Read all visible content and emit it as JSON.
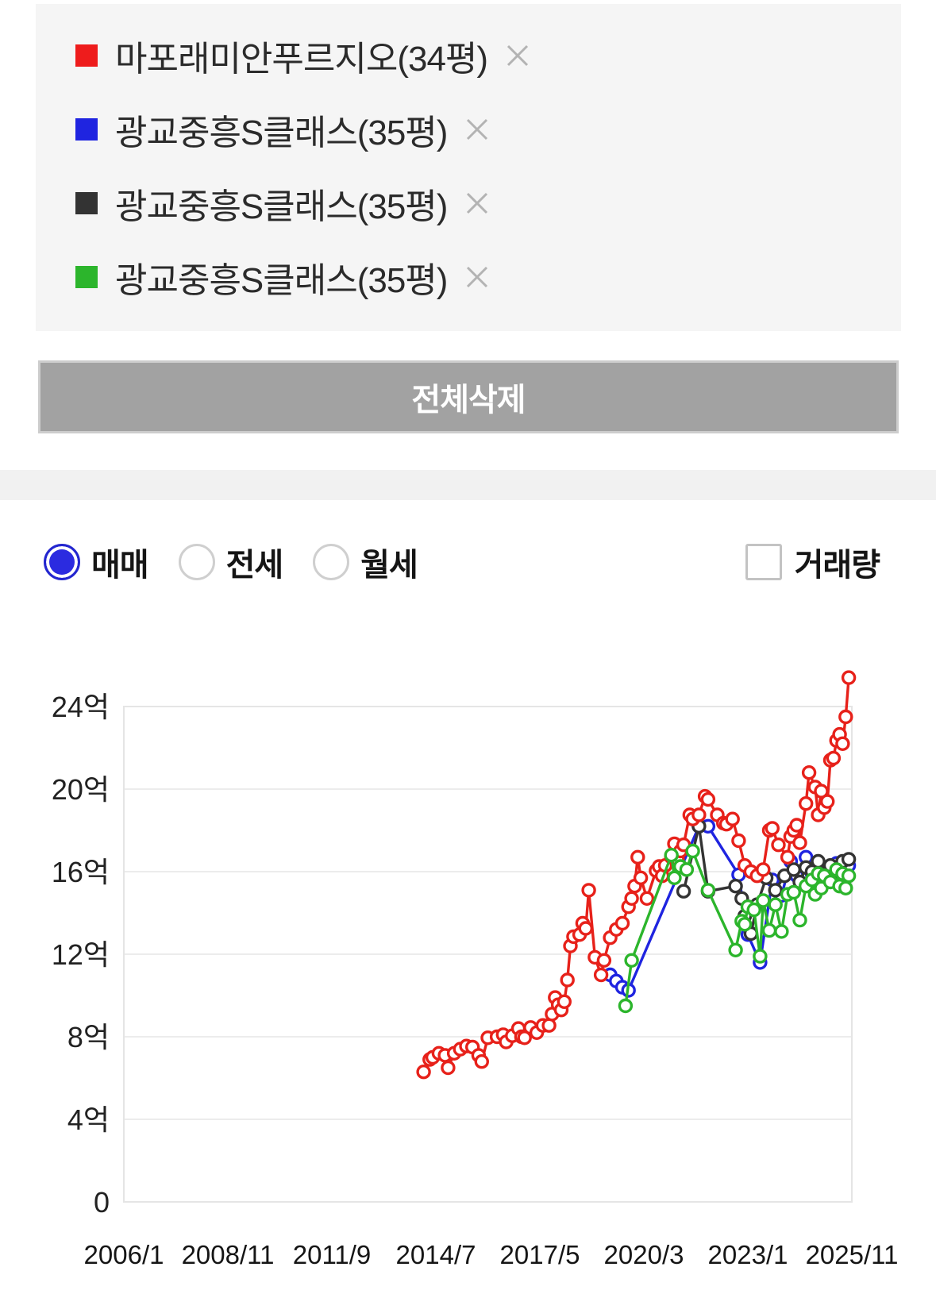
{
  "watchlist": {
    "items": [
      {
        "label": "마포래미안푸르지오(34평)",
        "color": "#ee1c1c"
      },
      {
        "label": "광교중흥S클래스(35평)",
        "color": "#1f24e0"
      },
      {
        "label": "광교중흥S클래스(35평)",
        "color": "#333333"
      },
      {
        "label": "광교중흥S클래스(35평)",
        "color": "#2cb52c"
      }
    ],
    "delete_all_label": "전체삭제"
  },
  "controls": {
    "trade_type": {
      "options": [
        {
          "label": "매매",
          "selected": true
        },
        {
          "label": "전세",
          "selected": false
        },
        {
          "label": "월세",
          "selected": false
        }
      ]
    },
    "volume_checkbox": {
      "label": "거래량",
      "checked": false
    }
  },
  "chart_data": {
    "type": "line",
    "title": "",
    "xlabel": "",
    "ylabel": "",
    "unit": "억",
    "ylim": [
      0,
      24
    ],
    "grid": "horizontal",
    "marker": "open-circle",
    "y_ticks": [
      {
        "value": 0,
        "label": "0"
      },
      {
        "value": 4,
        "label": "4억"
      },
      {
        "value": 8,
        "label": "8억"
      },
      {
        "value": 12,
        "label": "12억"
      },
      {
        "value": 16,
        "label": "16억"
      },
      {
        "value": 20,
        "label": "20억"
      },
      {
        "value": 24,
        "label": "24억"
      }
    ],
    "x_ticks": [
      {
        "month": "2006-01",
        "label": "2006/1"
      },
      {
        "month": "2008-11",
        "label": "2008/11"
      },
      {
        "month": "2011-09",
        "label": "2011/9"
      },
      {
        "month": "2014-07",
        "label": "2014/7"
      },
      {
        "month": "2017-05",
        "label": "2017/5"
      },
      {
        "month": "2020-03",
        "label": "2020/3"
      },
      {
        "month": "2023-01",
        "label": "2023/1"
      },
      {
        "month": "2025-11",
        "label": "2025/11"
      }
    ],
    "x_range": [
      "2006-01",
      "2025-11"
    ],
    "series": [
      {
        "name": "광교중흥S클래스(35평)",
        "color": "#1f24e0",
        "points": [
          [
            "2019-04",
            11.0
          ],
          [
            "2019-06",
            10.7
          ],
          [
            "2019-08",
            10.4
          ],
          [
            "2019-10",
            10.25
          ],
          [
            "2021-09",
            18.2
          ],
          [
            "2021-12",
            18.2
          ],
          [
            "2022-10",
            15.85
          ],
          [
            "2023-01",
            12.95
          ],
          [
            "2023-05",
            11.6
          ],
          [
            "2023-09",
            15.6
          ],
          [
            "2023-12",
            14.85
          ],
          [
            "2024-03",
            16.5
          ],
          [
            "2024-05",
            15.8
          ],
          [
            "2024-08",
            16.7
          ],
          [
            "2024-10",
            15.9
          ],
          [
            "2024-12",
            16.2
          ],
          [
            "2025-02",
            15.7
          ],
          [
            "2025-04",
            16.0
          ],
          [
            "2025-06",
            16.4
          ],
          [
            "2025-08",
            16.1
          ],
          [
            "2025-10",
            16.3
          ]
        ]
      },
      {
        "name": "광교중흥S클래스(35평)",
        "color": "#333333",
        "points": [
          [
            "2021-04",
            15.05
          ],
          [
            "2021-09",
            18.2
          ],
          [
            "2021-12",
            15.05
          ],
          [
            "2022-09",
            15.3
          ],
          [
            "2022-11",
            14.7
          ],
          [
            "2022-12",
            13.85
          ],
          [
            "2023-02",
            13.0
          ],
          [
            "2023-04",
            14.4
          ],
          [
            "2023-07",
            15.7
          ],
          [
            "2023-10",
            15.1
          ],
          [
            "2024-01",
            15.8
          ],
          [
            "2024-04",
            16.1
          ],
          [
            "2024-06",
            15.5
          ],
          [
            "2024-08",
            16.2
          ],
          [
            "2024-10",
            16.0
          ],
          [
            "2024-12",
            16.5
          ],
          [
            "2025-02",
            15.9
          ],
          [
            "2025-04",
            16.3
          ],
          [
            "2025-06",
            16.0
          ],
          [
            "2025-08",
            16.5
          ],
          [
            "2025-10",
            16.6
          ]
        ]
      },
      {
        "name": "마포래미안푸르지오(34평)",
        "color": "#e7211a",
        "points": [
          [
            "2014-03",
            6.3
          ],
          [
            "2014-05",
            6.9
          ],
          [
            "2014-06",
            7.0
          ],
          [
            "2014-08",
            7.2
          ],
          [
            "2014-10",
            7.1
          ],
          [
            "2014-11",
            6.5
          ],
          [
            "2015-01",
            7.2
          ],
          [
            "2015-03",
            7.4
          ],
          [
            "2015-05",
            7.55
          ],
          [
            "2015-07",
            7.5
          ],
          [
            "2015-09",
            7.1
          ],
          [
            "2015-10",
            6.8
          ],
          [
            "2015-12",
            7.95
          ],
          [
            "2016-03",
            8.0
          ],
          [
            "2016-05",
            8.1
          ],
          [
            "2016-06",
            7.75
          ],
          [
            "2016-08",
            8.05
          ],
          [
            "2016-10",
            8.4
          ],
          [
            "2016-11",
            8.0
          ],
          [
            "2016-12",
            7.95
          ],
          [
            "2017-02",
            8.45
          ],
          [
            "2017-04",
            8.2
          ],
          [
            "2017-06",
            8.55
          ],
          [
            "2017-08",
            8.55
          ],
          [
            "2017-09",
            9.1
          ],
          [
            "2017-10",
            9.9
          ],
          [
            "2017-11",
            9.55
          ],
          [
            "2017-12",
            9.3
          ],
          [
            "2018-01",
            9.7
          ],
          [
            "2018-02",
            10.75
          ],
          [
            "2018-03",
            12.4
          ],
          [
            "2018-04",
            12.85
          ],
          [
            "2018-06",
            12.95
          ],
          [
            "2018-07",
            13.5
          ],
          [
            "2018-08",
            13.25
          ],
          [
            "2018-09",
            15.1
          ],
          [
            "2018-11",
            11.85
          ],
          [
            "2019-01",
            11.0
          ],
          [
            "2019-02",
            11.7
          ],
          [
            "2019-04",
            12.8
          ],
          [
            "2019-06",
            13.2
          ],
          [
            "2019-08",
            13.5
          ],
          [
            "2019-10",
            14.3
          ],
          [
            "2019-11",
            14.7
          ],
          [
            "2019-12",
            15.3
          ],
          [
            "2020-01",
            16.7
          ],
          [
            "2020-02",
            15.7
          ],
          [
            "2020-04",
            14.7
          ],
          [
            "2020-07",
            16.05
          ],
          [
            "2020-08",
            16.25
          ],
          [
            "2020-09",
            15.8
          ],
          [
            "2020-10",
            16.3
          ],
          [
            "2020-12",
            16.7
          ],
          [
            "2021-01",
            17.35
          ],
          [
            "2021-02",
            16.6
          ],
          [
            "2021-03",
            17.0
          ],
          [
            "2021-04",
            17.3
          ],
          [
            "2021-06",
            18.75
          ],
          [
            "2021-07",
            18.55
          ],
          [
            "2021-09",
            18.75
          ],
          [
            "2021-11",
            19.65
          ],
          [
            "2021-12",
            19.5
          ],
          [
            "2022-03",
            18.75
          ],
          [
            "2022-05",
            18.35
          ],
          [
            "2022-06",
            18.3
          ],
          [
            "2022-08",
            18.55
          ],
          [
            "2022-10",
            17.5
          ],
          [
            "2022-12",
            16.3
          ],
          [
            "2023-02",
            16.0
          ],
          [
            "2023-04",
            15.8
          ],
          [
            "2023-06",
            16.1
          ],
          [
            "2023-08",
            18.0
          ],
          [
            "2023-09",
            18.1
          ],
          [
            "2023-11",
            17.3
          ],
          [
            "2024-02",
            16.7
          ],
          [
            "2024-03",
            17.7
          ],
          [
            "2024-04",
            18.0
          ],
          [
            "2024-05",
            18.25
          ],
          [
            "2024-06",
            17.4
          ],
          [
            "2024-08",
            19.3
          ],
          [
            "2024-09",
            20.8
          ],
          [
            "2024-11",
            20.1
          ],
          [
            "2024-12",
            18.75
          ],
          [
            "2025-01",
            19.9
          ],
          [
            "2025-02",
            19.1
          ],
          [
            "2025-03",
            19.4
          ],
          [
            "2025-04",
            21.4
          ],
          [
            "2025-05",
            21.5
          ],
          [
            "2025-06",
            22.35
          ],
          [
            "2025-07",
            22.65
          ],
          [
            "2025-08",
            22.2
          ],
          [
            "2025-09",
            23.5
          ],
          [
            "2025-10",
            25.4
          ]
        ]
      },
      {
        "name": "광교중흥S클래스(35평)",
        "color": "#2cb52c",
        "points": [
          [
            "2019-09",
            9.5
          ],
          [
            "2019-11",
            11.7
          ],
          [
            "2020-12",
            16.8
          ],
          [
            "2021-01",
            15.7
          ],
          [
            "2021-03",
            16.25
          ],
          [
            "2021-05",
            16.1
          ],
          [
            "2021-07",
            17.0
          ],
          [
            "2021-12",
            15.1
          ],
          [
            "2022-09",
            12.2
          ],
          [
            "2022-11",
            13.6
          ],
          [
            "2022-12",
            13.45
          ],
          [
            "2023-01",
            14.3
          ],
          [
            "2023-03",
            14.15
          ],
          [
            "2023-05",
            11.9
          ],
          [
            "2023-06",
            14.6
          ],
          [
            "2023-08",
            13.15
          ],
          [
            "2023-10",
            14.4
          ],
          [
            "2023-12",
            13.1
          ],
          [
            "2024-02",
            14.9
          ],
          [
            "2024-04",
            15.0
          ],
          [
            "2024-06",
            13.65
          ],
          [
            "2024-08",
            15.3
          ],
          [
            "2024-10",
            15.6
          ],
          [
            "2024-11",
            14.9
          ],
          [
            "2024-12",
            15.9
          ],
          [
            "2025-01",
            15.2
          ],
          [
            "2025-02",
            15.8
          ],
          [
            "2025-04",
            15.5
          ],
          [
            "2025-06",
            16.1
          ],
          [
            "2025-07",
            15.3
          ],
          [
            "2025-08",
            15.9
          ],
          [
            "2025-09",
            15.2
          ],
          [
            "2025-10",
            15.8
          ]
        ]
      }
    ]
  }
}
